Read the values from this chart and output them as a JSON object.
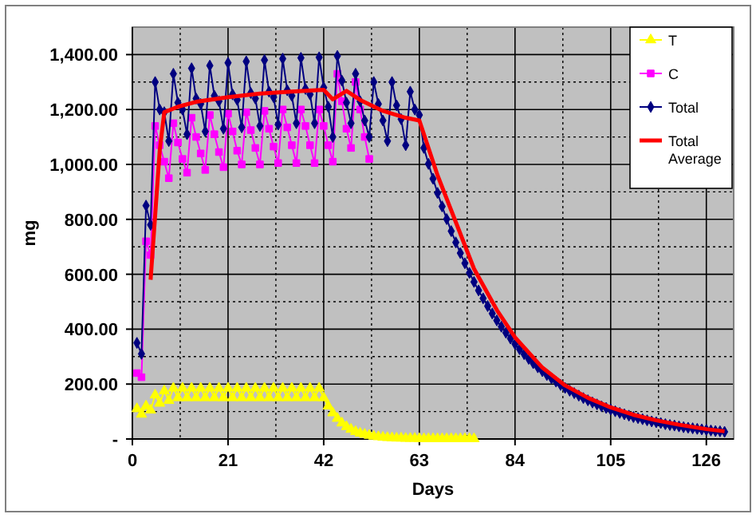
{
  "chart_data": {
    "type": "line",
    "xlabel": "Days",
    "ylabel": "mg",
    "xlim": [
      0,
      132
    ],
    "ylim": [
      0,
      1500
    ],
    "xticks": [
      0,
      21,
      42,
      63,
      84,
      105,
      126
    ],
    "yticks": [
      {
        "value": 0,
        "label": "-"
      },
      {
        "value": 200,
        "label": "200.00"
      },
      {
        "value": 400,
        "label": "400.00"
      },
      {
        "value": 600,
        "label": "600.00"
      },
      {
        "value": 800,
        "label": "800.00"
      },
      {
        "value": 1000,
        "label": "1,000.00"
      },
      {
        "value": 1200,
        "label": "1,200.00"
      },
      {
        "value": 1400,
        "label": "1,400.00"
      }
    ],
    "grid": true,
    "legend": "top right",
    "line_style": "solid",
    "series": [
      {
        "name": "T",
        "color": "#ffff00",
        "marker": "triangle",
        "x": [
          1,
          2,
          3,
          4,
          5,
          6,
          7,
          8,
          9,
          10,
          11,
          12,
          13,
          14,
          15,
          16,
          17,
          18,
          19,
          20,
          21,
          22,
          23,
          24,
          25,
          26,
          27,
          28,
          29,
          30,
          31,
          32,
          33,
          34,
          35,
          36,
          37,
          38,
          39,
          40,
          41,
          42,
          43,
          44,
          45,
          46,
          47,
          48,
          49,
          50,
          51,
          52,
          53,
          54,
          55,
          56,
          57,
          58,
          59,
          60,
          61,
          62,
          63,
          64,
          65,
          66,
          67,
          68,
          69,
          70,
          71,
          72,
          73,
          74,
          75
        ],
        "values": [
          110,
          90,
          120,
          105,
          160,
          130,
          175,
          140,
          185,
          150,
          185,
          150,
          185,
          150,
          185,
          150,
          185,
          150,
          185,
          150,
          185,
          150,
          185,
          150,
          185,
          150,
          185,
          150,
          185,
          150,
          185,
          150,
          185,
          150,
          185,
          150,
          185,
          150,
          185,
          150,
          185,
          150,
          120,
          95,
          75,
          58,
          45,
          35,
          27,
          21,
          17,
          13,
          10,
          8,
          6,
          5,
          4,
          3,
          3,
          2,
          2,
          2,
          1,
          1,
          1,
          1,
          1,
          1,
          1,
          1,
          1,
          1,
          1,
          1,
          1
        ]
      },
      {
        "name": "C",
        "color": "#ff00ff",
        "marker": "square",
        "x": [
          1,
          2,
          3,
          4,
          5,
          6,
          7,
          8,
          9,
          10,
          11,
          12,
          13,
          14,
          15,
          16,
          17,
          18,
          19,
          20,
          21,
          22,
          23,
          24,
          25,
          26,
          27,
          28,
          29,
          30,
          31,
          32,
          33,
          34,
          35,
          36,
          37,
          38,
          39,
          40,
          41,
          42,
          43,
          44,
          45,
          46,
          47,
          48,
          49,
          50,
          51,
          52
        ],
        "values": [
          240,
          225,
          720,
          670,
          1140,
          1070,
          1010,
          950,
          1150,
          1080,
          1020,
          970,
          1170,
          1100,
          1040,
          980,
          1180,
          1110,
          1045,
          990,
          1185,
          1120,
          1050,
          1000,
          1190,
          1125,
          1060,
          1000,
          1195,
          1130,
          1065,
          1005,
          1200,
          1135,
          1070,
          1005,
          1200,
          1140,
          1070,
          1005,
          1200,
          1140,
          1070,
          1010,
          1330,
          1230,
          1130,
          1060,
          1300,
          1200,
          1100,
          1020
        ]
      },
      {
        "name": "Total",
        "color": "#000080",
        "marker": "diamond",
        "x": [
          1,
          2,
          3,
          4,
          5,
          6,
          7,
          8,
          9,
          10,
          11,
          12,
          13,
          14,
          15,
          16,
          17,
          18,
          19,
          20,
          21,
          22,
          23,
          24,
          25,
          26,
          27,
          28,
          29,
          30,
          31,
          32,
          33,
          34,
          35,
          36,
          37,
          38,
          39,
          40,
          41,
          42,
          43,
          44,
          45,
          46,
          47,
          48,
          49,
          50,
          51,
          52,
          53,
          54,
          55,
          56,
          57,
          58,
          59,
          60,
          61,
          62,
          63,
          64,
          65,
          66,
          67,
          68,
          69,
          70,
          71,
          72,
          73,
          74,
          75,
          76,
          77,
          78,
          79,
          80,
          81,
          82,
          83,
          84,
          85,
          86,
          87,
          88,
          89,
          90,
          91,
          92,
          93,
          94,
          95,
          96,
          97,
          98,
          99,
          100,
          101,
          102,
          103,
          104,
          105,
          106,
          107,
          108,
          109,
          110,
          111,
          112,
          113,
          114,
          115,
          116,
          117,
          118,
          119,
          120,
          121,
          122,
          123,
          124,
          125,
          126,
          127,
          128,
          129,
          130
        ],
        "values": [
          350,
          310,
          850,
          780,
          1300,
          1200,
          1190,
          1085,
          1330,
          1225,
          1200,
          1110,
          1350,
          1240,
          1220,
          1120,
          1360,
          1250,
          1230,
          1130,
          1370,
          1255,
          1235,
          1135,
          1375,
          1260,
          1240,
          1140,
          1380,
          1265,
          1245,
          1145,
          1385,
          1270,
          1250,
          1150,
          1388,
          1275,
          1255,
          1150,
          1390,
          1280,
          1210,
          1100,
          1395,
          1305,
          1225,
          1150,
          1330,
          1230,
          1160,
          1100,
          1300,
          1220,
          1160,
          1085,
          1300,
          1215,
          1165,
          1070,
          1265,
          1200,
          1180,
          1060,
          1002,
          948,
          896,
          847,
          801,
          757,
          716,
          677,
          640,
          605,
          572,
          541,
          512,
          484,
          457,
          432,
          409,
          387,
          366,
          346,
          327,
          309,
          292,
          276,
          261,
          247,
          233,
          221,
          209,
          197,
          186,
          176,
          167,
          158,
          149,
          141,
          133,
          126,
          119,
          113,
          107,
          101,
          95,
          90,
          85,
          80,
          76,
          72,
          68,
          64,
          61,
          58,
          54,
          51,
          49,
          46,
          43,
          41,
          39,
          37,
          35,
          33,
          31,
          29,
          28,
          26
        ]
      },
      {
        "name": "Total Average",
        "color": "#ff0000",
        "marker": "none",
        "x": [
          4,
          6,
          7,
          10,
          14,
          21,
          28,
          35,
          42,
          44,
          47,
          50,
          55,
          60,
          63,
          67,
          71,
          75,
          80,
          84,
          90,
          95,
          100,
          105,
          110,
          115,
          120,
          126,
          130
        ],
        "values": [
          580,
          1050,
          1190,
          1210,
          1228,
          1245,
          1258,
          1265,
          1272,
          1237,
          1268,
          1235,
          1195,
          1170,
          1160,
          960,
          790,
          620,
          470,
          370,
          260,
          195,
          150,
          115,
          88,
          68,
          52,
          36,
          28
        ]
      }
    ]
  }
}
